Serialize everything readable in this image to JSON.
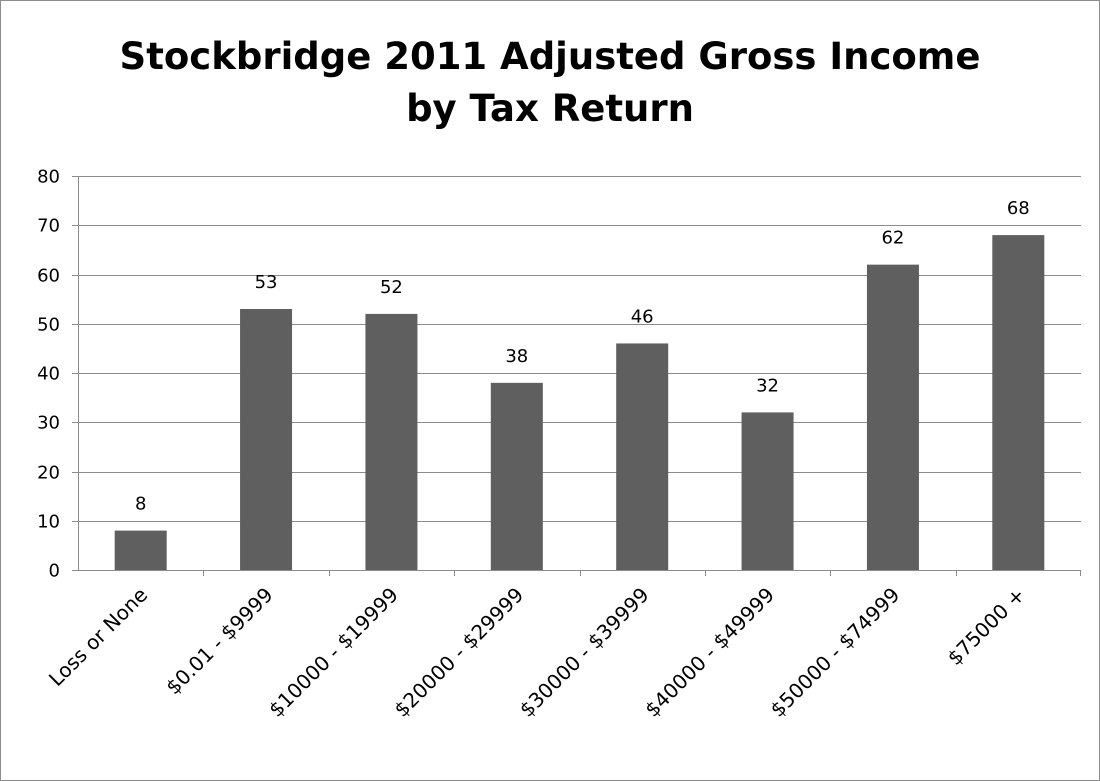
{
  "chart_data": {
    "type": "bar",
    "title": [
      "Stockbridge 2011 Adjusted Gross Income",
      "by Tax Return"
    ],
    "categories": [
      "Loss or None",
      "$0.01 - $9999",
      "$10000 - $19999",
      "$20000 - $29999",
      "$30000 - $39999",
      "$40000 - $49999",
      "$50000 - $74999",
      "$75000 +"
    ],
    "values": [
      8,
      53,
      52,
      38,
      46,
      32,
      62,
      68
    ],
    "ylim": [
      0,
      80
    ],
    "yticks": [
      0,
      10,
      20,
      30,
      40,
      50,
      60,
      70,
      80
    ],
    "grid": true,
    "legend": "none",
    "bar_color": "#5f5f5f",
    "gridline_color": "#8c8c8c"
  }
}
